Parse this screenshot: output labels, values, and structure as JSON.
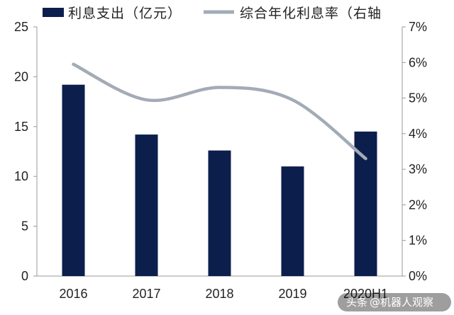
{
  "chart_data": {
    "type": "bar",
    "categories": [
      "2016",
      "2017",
      "2018",
      "2019",
      "2020H1"
    ],
    "series": [
      {
        "name": "利息支出（亿元）",
        "type": "bar",
        "axis": "left",
        "color": "#0c1e4c",
        "values": [
          19.2,
          14.2,
          12.6,
          11.0,
          14.5
        ]
      },
      {
        "name": "综合年化利息率（右轴",
        "type": "line",
        "axis": "right",
        "color": "#a3abb6",
        "values": [
          5.95,
          4.95,
          5.3,
          4.95,
          3.3
        ]
      }
    ],
    "ylim_left": [
      0,
      25
    ],
    "yticks_left": [
      "0",
      "5",
      "10",
      "15",
      "20",
      "25"
    ],
    "ylim_right": [
      0,
      7
    ],
    "yticks_right": [
      "0%",
      "1%",
      "2%",
      "3%",
      "4%",
      "5%",
      "6%",
      "7%"
    ],
    "grid": false,
    "legend_position": "top"
  },
  "watermark": {
    "prefix": "头条",
    "handle": "@机器人观察"
  }
}
